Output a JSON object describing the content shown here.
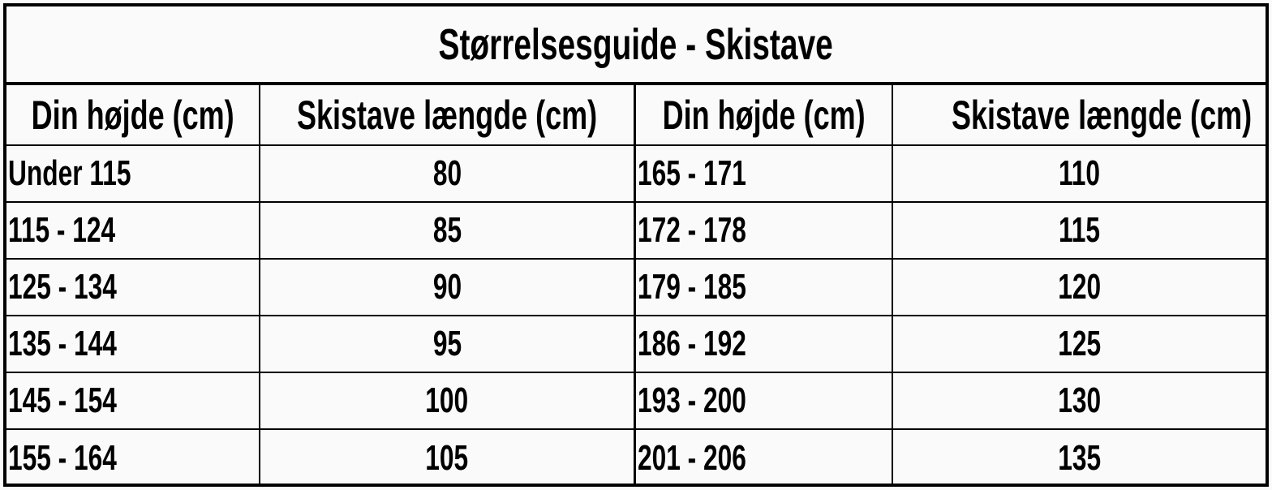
{
  "title": "Størrelsesguide - Skistave",
  "headers": [
    "Din højde (cm)",
    "Skistave længde (cm)",
    "Din højde (cm)",
    "Skistave længde (cm)"
  ],
  "rows": [
    [
      "Under 115",
      "80",
      "165 - 171",
      "110"
    ],
    [
      "115 - 124",
      "85",
      "172 - 178",
      "115"
    ],
    [
      "125 - 134",
      "90",
      "179 - 185",
      "120"
    ],
    [
      "135 - 144",
      "95",
      "186 - 192",
      "125"
    ],
    [
      "145 - 154",
      "100",
      "193 - 200",
      "130"
    ],
    [
      "155 - 164",
      "105",
      "201 - 206",
      "135"
    ]
  ]
}
